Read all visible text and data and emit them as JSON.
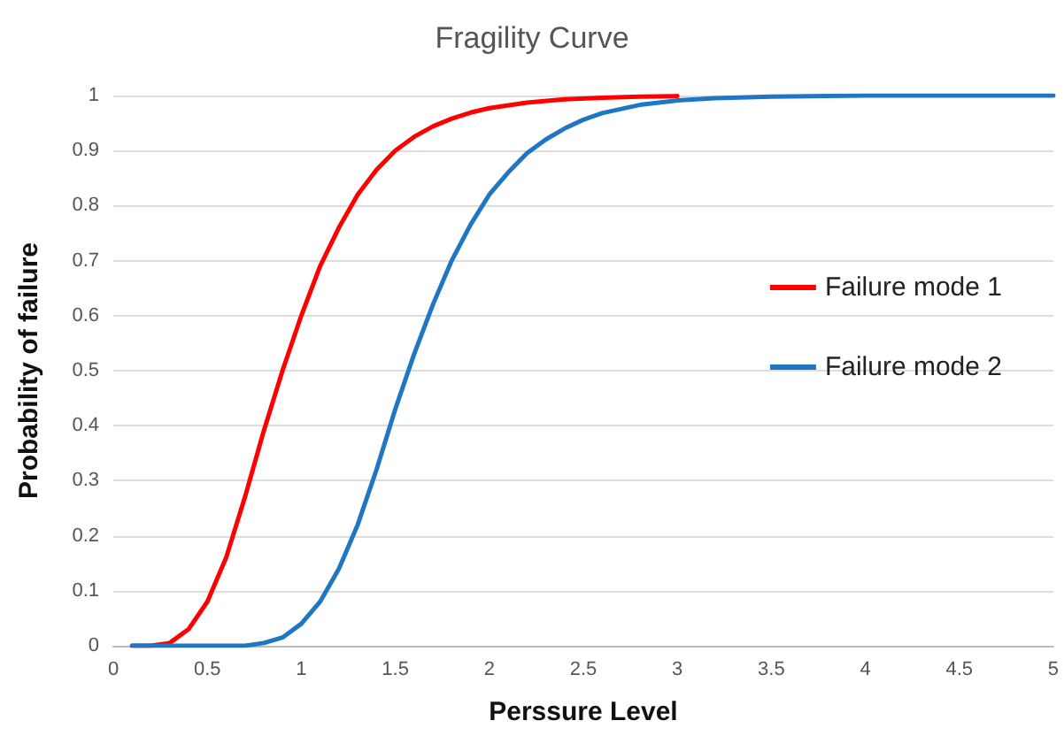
{
  "chart_data": {
    "type": "line",
    "title": "Fragility Curve",
    "xlabel": "Perssure Level",
    "ylabel": "Probability of failure",
    "xlim": [
      0,
      5
    ],
    "xticks": [
      0,
      0.5,
      1,
      1.5,
      2,
      2.5,
      3,
      3.5,
      4,
      4.5,
      5
    ],
    "ylim": [
      0,
      1
    ],
    "yticks": [
      0,
      0.1,
      0.2,
      0.3,
      0.4,
      0.5,
      0.6,
      0.7,
      0.8,
      0.9,
      1
    ],
    "grid": "y",
    "legend": "right",
    "marker": "none",
    "line_style": "solid",
    "series": [
      {
        "name": "Failure mode 1",
        "color": "#ff0000",
        "x": [
          0.1,
          0.2,
          0.3,
          0.4,
          0.5,
          0.6,
          0.7,
          0.8,
          0.9,
          1,
          1.1,
          1.2,
          1.3,
          1.4,
          1.5,
          1.6,
          1.7,
          1.8,
          1.9,
          2,
          2.2,
          2.4,
          2.6,
          2.8,
          3
        ],
        "values": [
          0,
          0,
          0.005,
          0.03,
          0.08,
          0.16,
          0.27,
          0.39,
          0.5,
          0.6,
          0.69,
          0.76,
          0.82,
          0.865,
          0.9,
          0.925,
          0.944,
          0.958,
          0.969,
          0.977,
          0.987,
          0.993,
          0.996,
          0.998,
          0.999
        ]
      },
      {
        "name": "Failure mode 2",
        "color": "#1f77c4",
        "x": [
          0.1,
          0.2,
          0.3,
          0.4,
          0.5,
          0.6,
          0.7,
          0.8,
          0.9,
          1,
          1.1,
          1.2,
          1.3,
          1.4,
          1.5,
          1.6,
          1.7,
          1.8,
          1.9,
          2,
          2.1,
          2.2,
          2.3,
          2.4,
          2.5,
          2.6,
          2.8,
          3,
          3.2,
          3.5,
          4,
          4.5,
          5
        ],
        "values": [
          0,
          0,
          0,
          0,
          0,
          0,
          0,
          0.005,
          0.015,
          0.04,
          0.08,
          0.14,
          0.22,
          0.32,
          0.43,
          0.53,
          0.62,
          0.7,
          0.765,
          0.82,
          0.86,
          0.895,
          0.92,
          0.94,
          0.956,
          0.968,
          0.983,
          0.991,
          0.995,
          0.998,
          1,
          1,
          1
        ]
      }
    ]
  }
}
